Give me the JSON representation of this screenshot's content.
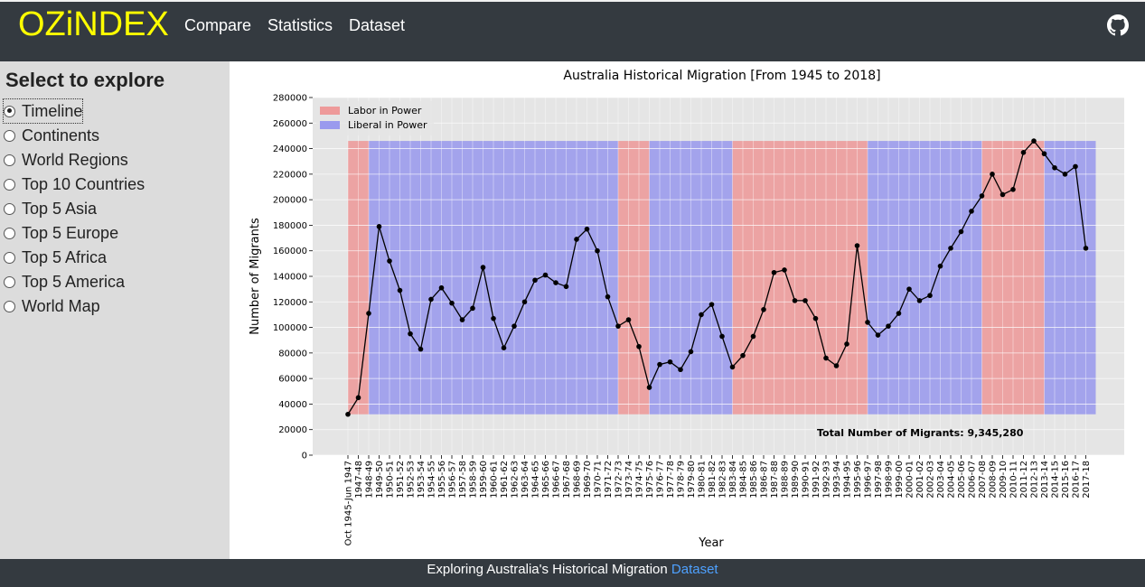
{
  "header": {
    "brand": "OZiNDEX",
    "nav": [
      "Compare",
      "Statistics",
      "Dataset"
    ],
    "github_icon": "github-icon"
  },
  "sidebar": {
    "title": "Select to explore",
    "options": [
      "Timeline",
      "Continents",
      "World Regions",
      "Top 10 Countries",
      "Top 5 Asia",
      "Top 5 Europe",
      "Top 5 Africa",
      "Top 5 America",
      "World Map"
    ],
    "selected": "Timeline"
  },
  "chart_data": {
    "type": "line",
    "title": "Australia  Historical Migration [From 1945 to 2018]",
    "xlabel": "Year",
    "ylabel": "Number of Migrants",
    "ylim": [
      0,
      280000
    ],
    "yticks": [
      0,
      20000,
      40000,
      60000,
      80000,
      100000,
      120000,
      140000,
      160000,
      180000,
      200000,
      220000,
      240000,
      260000,
      280000
    ],
    "grid": true,
    "legend_position": "top-left",
    "legend": [
      {
        "name": "Labor in Power",
        "color": "#f08080"
      },
      {
        "name": "Liberal in Power",
        "color": "#8080f0"
      }
    ],
    "annotation": "Total Number of Migrants: 9,345,280",
    "categories": [
      "Oct 1945-Jun 1947",
      "1947-48",
      "1948-49",
      "1949-50",
      "1950-51",
      "1951-52",
      "1952-53",
      "1953-54",
      "1954-55",
      "1955-56",
      "1956-57",
      "1957-58",
      "1958-59",
      "1959-60",
      "1960-61",
      "1961-62",
      "1962-63",
      "1963-64",
      "1964-65",
      "1965-66",
      "1966-67",
      "1967-68",
      "1968-69",
      "1969-70",
      "1970-71",
      "1971-72",
      "1972-73",
      "1973-74",
      "1974-75",
      "1975-76",
      "1976-77",
      "1977-78",
      "1978-79",
      "1979-80",
      "1980-81",
      "1981-82",
      "1982-83",
      "1983-84",
      "1984-85",
      "1985-86",
      "1986-87",
      "1987-88",
      "1988-89",
      "1989-90",
      "1990-91",
      "1991-92",
      "1992-93",
      "1993-94",
      "1994-95",
      "1995-96",
      "1996-97",
      "1997-98",
      "1998-99",
      "1999-00",
      "2000-01",
      "2001-02",
      "2002-03",
      "2003-04",
      "2004-05",
      "2005-06",
      "2006-07",
      "2007-08",
      "2008-09",
      "2009-10",
      "2010-11",
      "2011-12",
      "2012-13",
      "2013-14",
      "2014-15",
      "2015-16",
      "2016-17",
      "2017-18"
    ],
    "values": [
      32000,
      45000,
      111000,
      179000,
      152000,
      129000,
      95000,
      83000,
      122000,
      131000,
      119000,
      106000,
      115000,
      147000,
      107000,
      84000,
      101000,
      120000,
      137000,
      141000,
      135000,
      132000,
      169000,
      177000,
      160000,
      124000,
      101000,
      106000,
      85000,
      53000,
      71000,
      73000,
      67000,
      81000,
      110000,
      118000,
      93000,
      69000,
      78000,
      93000,
      114000,
      143000,
      145000,
      121000,
      121000,
      107000,
      76000,
      70000,
      87000,
      164000,
      104000,
      94000,
      101000,
      111000,
      130000,
      121000,
      125000,
      148000,
      162000,
      175000,
      191000,
      203000,
      220000,
      204000,
      208000,
      237000,
      246000,
      236000,
      225000,
      220000,
      226000,
      162000
    ],
    "shaded_periods": [
      {
        "party": "Labor",
        "from": "Oct 1945-Jun 1947",
        "to": "1948-49"
      },
      {
        "party": "Liberal",
        "from": "1948-49",
        "to": "1972-73"
      },
      {
        "party": "Labor",
        "from": "1972-73",
        "to": "1975-76"
      },
      {
        "party": "Liberal",
        "from": "1975-76",
        "to": "1983-84"
      },
      {
        "party": "Labor",
        "from": "1983-84",
        "to": "1996-97"
      },
      {
        "party": "Liberal",
        "from": "1996-97",
        "to": "2007-08"
      },
      {
        "party": "Labor",
        "from": "2007-08",
        "to": "2013-14"
      },
      {
        "party": "Liberal",
        "from": "2013-14",
        "to": "2017-18"
      }
    ],
    "shade_range": [
      32000,
      246000
    ]
  },
  "footer": {
    "text": "Exploring Australia's Historical Migration",
    "link": "Dataset"
  }
}
